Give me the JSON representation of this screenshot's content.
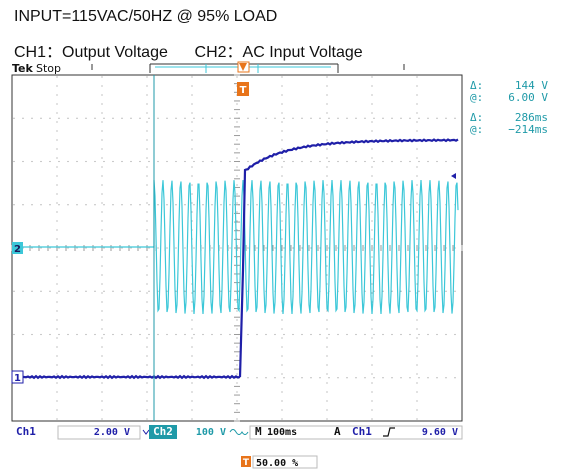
{
  "caption": {
    "line1": "INPUT=115VAC/50HZ @ 95% LOAD",
    "line2": "CH1：Output Voltage      CH2：AC Input Voltage"
  },
  "scope": {
    "brand": "Tek",
    "run_state": "Stop",
    "trigger_marker": "T",
    "channel_markers": {
      "ch1": "1",
      "ch2": "2"
    },
    "readout": {
      "voltage_delta_label": "Δ:",
      "voltage_delta_value": "144 V",
      "voltage_at_label": "@:",
      "voltage_at_value": "6.00 V",
      "time_delta_label": "Δ:",
      "time_delta_value": "286ms",
      "time_at_label": "@:",
      "time_at_value": "−214ms"
    },
    "status_bar": {
      "ch1_label": "Ch1",
      "ch1_scale": "2.00 V",
      "ch1_coupling_icon": "bandwidth-limit-icon",
      "ch2_label": "Ch2",
      "ch2_scale": "100 V",
      "ch2_coupling_icon": "ac-coupling-icon",
      "timebase_label": "M",
      "timebase_value": "100ms",
      "trigger_mode": "A",
      "trigger_source": "Ch1",
      "trigger_slope_icon": "rising-edge-icon",
      "trigger_level": "9.60 V"
    },
    "trigger_position": "50.00 %",
    "colors": {
      "ch1": "#1f1fa8",
      "ch2": "#3cc7d8",
      "trigger": "#e8741a",
      "grid": "#9a9a9a",
      "readout": "#1f9aa8"
    }
  }
}
